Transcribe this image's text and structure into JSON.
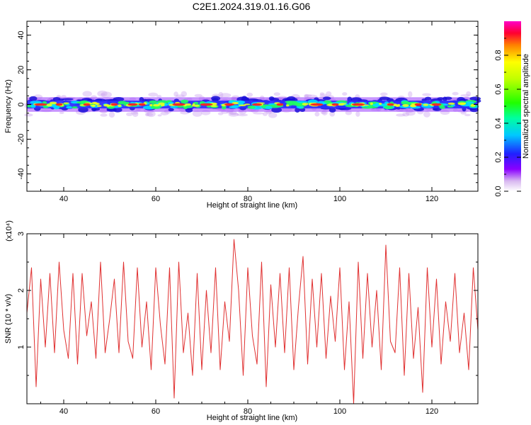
{
  "title": "C2E1.2024.319.01.16.G06",
  "chart_data": [
    {
      "type": "heatmap",
      "xlabel": "Height of straight line (km)",
      "ylabel": "Frequency (Hz)",
      "xlim": [
        32,
        130
      ],
      "ylim": [
        -50,
        48
      ],
      "x_ticks": [
        40,
        60,
        80,
        100,
        120
      ],
      "y_ticks": [
        -40,
        -20,
        0,
        20,
        40
      ],
      "band_center_hz": 0,
      "band_halfwidth_hz": 3,
      "colorbar": {
        "label": "Normalized spectral amplitude",
        "range": [
          0,
          1
        ],
        "ticks": [
          0.0,
          0.2,
          0.4,
          0.6,
          0.8
        ]
      },
      "hot_spots_km": [
        35,
        39,
        45,
        51,
        55,
        57,
        65,
        71,
        76,
        82,
        87,
        95,
        99,
        104,
        111,
        117,
        121
      ]
    },
    {
      "type": "line",
      "xlabel": "Height of straight line (km)",
      "ylabel": "SNR (10 * v/v)",
      "y_multiplier": "(x10⁴)",
      "xlim": [
        32,
        130
      ],
      "ylim": [
        0,
        3
      ],
      "x_ticks": [
        40,
        60,
        80,
        100,
        120
      ],
      "y_ticks": [
        1,
        2,
        3
      ],
      "line_color": "#e03030",
      "series": [
        {
          "x": [
            32,
            33,
            34,
            35,
            36,
            37,
            38,
            39,
            40,
            41,
            42,
            43,
            44,
            45,
            46,
            47,
            48,
            49,
            50,
            51,
            52,
            53,
            54,
            55,
            56,
            57,
            58,
            59,
            60,
            61,
            62,
            63,
            64,
            65,
            66,
            67,
            68,
            69,
            70,
            71,
            72,
            73,
            74,
            75,
            76,
            77,
            78,
            79,
            80,
            81,
            82,
            83,
            84,
            85,
            86,
            87,
            88,
            89,
            90,
            91,
            92,
            93,
            94,
            95,
            96,
            97,
            98,
            99,
            100,
            101,
            102,
            103,
            104,
            105,
            106,
            107,
            108,
            109,
            110,
            111,
            112,
            113,
            114,
            115,
            116,
            117,
            118,
            119,
            120,
            121,
            122,
            123,
            124,
            125,
            126,
            127,
            128,
            129,
            130
          ],
          "values": [
            1.6,
            2.4,
            0.3,
            2.2,
            1.0,
            2.3,
            0.9,
            2.5,
            1.3,
            0.8,
            2.3,
            0.7,
            2.3,
            1.2,
            1.8,
            0.8,
            2.5,
            0.9,
            1.5,
            2.2,
            0.9,
            2.5,
            1.1,
            0.8,
            2.4,
            1.0,
            1.8,
            0.6,
            2.4,
            1.4,
            0.7,
            2.4,
            0.1,
            2.5,
            0.9,
            1.6,
            0.5,
            2.3,
            0.6,
            2.0,
            0.9,
            2.4,
            0.6,
            1.8,
            1.1,
            2.9,
            2.0,
            0.5,
            2.4,
            1.2,
            0.7,
            2.5,
            0.3,
            2.1,
            1.0,
            2.3,
            0.9,
            2.4,
            0.6,
            1.7,
            2.6,
            0.7,
            2.2,
            1.0,
            2.3,
            0.8,
            1.9,
            1.1,
            2.4,
            0.6,
            1.8,
            0.0,
            2.5,
            0.8,
            2.3,
            1.0,
            2.0,
            0.6,
            2.8,
            1.1,
            0.9,
            2.4,
            0.5,
            2.3,
            0.8,
            1.7,
            0.2,
            2.4,
            1.0,
            2.2,
            0.7,
            1.8,
            1.1,
            2.3,
            0.9,
            1.6,
            0.6,
            2.4,
            1.3
          ]
        }
      ]
    }
  ]
}
